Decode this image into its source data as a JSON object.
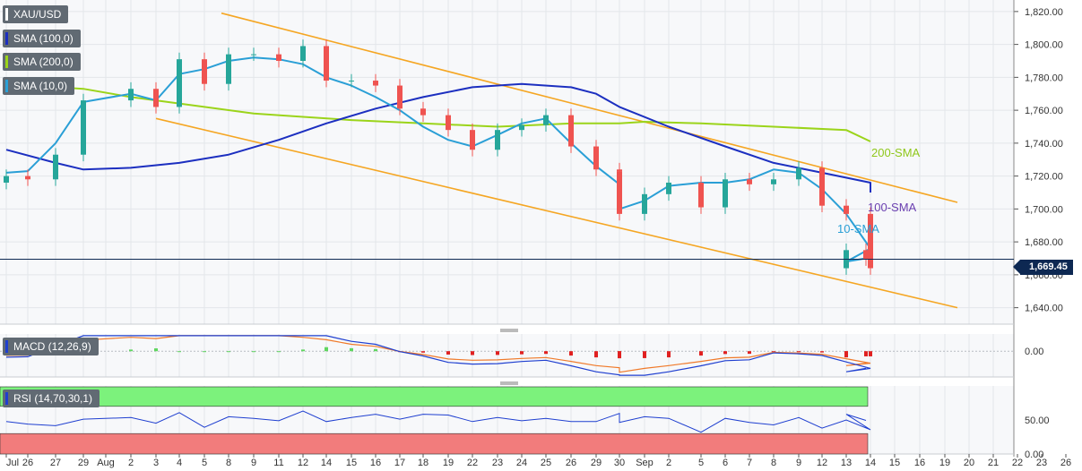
{
  "symbol": "XAU/USD",
  "indicator_tags": {
    "sma100": "SMA (100,0)",
    "sma200": "SMA (200,0)",
    "sma10": "SMA (10,0)",
    "macd": "MACD (12,26,9)",
    "rsi": "RSI (14,70,30,1)"
  },
  "annotations": {
    "sma200": "200-SMA",
    "sma100": "100-SMA",
    "sma10": "10-SMA"
  },
  "current_price": "1,669.45",
  "colors": {
    "bull": "#26a69a",
    "bear": "#ef5350",
    "channel": "#f5a623",
    "sma10": "#2a9fd6",
    "sma100": "#1c2fc0",
    "sma200": "#9bd41a",
    "macd_line": "#1f3fd0",
    "signal_line": "#f07a2a",
    "hist_pos": "#5fd65f",
    "hist_neg": "#e02020",
    "rsi_line": "#1f3fd0",
    "overbought": "#7cf27c",
    "oversold": "#f27c7c",
    "price_line": "#0d2852",
    "grid": "#e3e6ea"
  },
  "chart_data": [
    {
      "type": "candlestick",
      "title": "XAU/USD",
      "y_ticks": [
        1640,
        1660,
        1680,
        1700,
        1720,
        1740,
        1760,
        1780,
        1800,
        1820
      ],
      "y_tick_labels": [
        "1,640.00",
        "1,660.00",
        "1,680.00",
        "1,700.00",
        "1,720.00",
        "1,740.00",
        "1,760.00",
        "1,780.00",
        "1,800.00",
        "1,820.00"
      ],
      "ylim": [
        1630,
        1827
      ],
      "x_ticks": [
        "Jul",
        "26",
        "27",
        "29",
        "Aug",
        "2",
        "3",
        "4",
        "5",
        "8",
        "9",
        "11",
        "12",
        "14",
        "15",
        "16",
        "17",
        "18",
        "19",
        "22",
        "23",
        "24",
        "25",
        "26",
        "29",
        "30",
        "Sep",
        "2",
        "5",
        "6",
        "7",
        "8",
        "9",
        "12",
        "13",
        "14",
        "15",
        "16",
        "19",
        "20",
        "21",
        "22",
        "23",
        "26"
      ],
      "closes_by_date": [
        {
          "date": "Jul 25",
          "close": 1720
        },
        {
          "date": "Jul 26",
          "close": 1718
        },
        {
          "date": "Jul 27",
          "close": 1733
        },
        {
          "date": "Jul 29",
          "close": 1766
        },
        {
          "date": "Aug 2",
          "close": 1773
        },
        {
          "date": "Aug 3",
          "close": 1762
        },
        {
          "date": "Aug 4",
          "close": 1791
        },
        {
          "date": "Aug 5",
          "close": 1776
        },
        {
          "date": "Aug 8",
          "close": 1794
        },
        {
          "date": "Aug 9",
          "close": 1794
        },
        {
          "date": "Aug 11",
          "close": 1790
        },
        {
          "date": "Aug 12",
          "close": 1799
        },
        {
          "date": "Aug 14",
          "close": 1778
        },
        {
          "date": "Aug 15",
          "close": 1778
        },
        {
          "date": "Aug 16",
          "close": 1775
        },
        {
          "date": "Aug 17",
          "close": 1761
        },
        {
          "date": "Aug 18",
          "close": 1757
        },
        {
          "date": "Aug 19",
          "close": 1748
        },
        {
          "date": "Aug 22",
          "close": 1736
        },
        {
          "date": "Aug 23",
          "close": 1748
        },
        {
          "date": "Aug 24",
          "close": 1751
        },
        {
          "date": "Aug 25",
          "close": 1757
        },
        {
          "date": "Aug 26",
          "close": 1738
        },
        {
          "date": "Aug 29",
          "close": 1724
        },
        {
          "date": "Aug 30",
          "close": 1723
        },
        {
          "date": "Sep 1",
          "close": 1697
        },
        {
          "date": "Sep 2",
          "close": 1709
        },
        {
          "date": "Sep 5",
          "close": 1716
        },
        {
          "date": "Sep 6",
          "close": 1701
        },
        {
          "date": "Sep 7",
          "close": 1718
        },
        {
          "date": "Sep 8",
          "close": 1715
        },
        {
          "date": "Sep 9",
          "close": 1718
        },
        {
          "date": "Sep 12",
          "close": 1725
        },
        {
          "date": "Sep 13",
          "close": 1702
        },
        {
          "date": "Sep 14",
          "close": 1697
        },
        {
          "date": "Sep 15",
          "close": 1664
        },
        {
          "date": "Sep 16",
          "close": 1675
        },
        {
          "date": "Sep 18",
          "close": 1669.45
        }
      ],
      "sma10": [
        1722,
        1723,
        1740,
        1765,
        1770,
        1766,
        1782,
        1785,
        1790,
        1792,
        1791,
        1788,
        1780,
        1775,
        1768,
        1760,
        1750,
        1742,
        1738,
        1745,
        1752,
        1755,
        1740,
        1726,
        1715,
        1700,
        1705,
        1714,
        1716,
        1716,
        1718,
        1724,
        1722,
        1712,
        1697,
        1676,
        1668,
        1670
      ],
      "sma100": [
        1736,
        1728,
        1724,
        1725,
        1728,
        1733,
        1742,
        1752,
        1761,
        1768,
        1774,
        1776,
        1774,
        1770,
        1762,
        1750,
        1738,
        1728,
        1722,
        1716,
        1710
      ],
      "sma100_dates": [
        "Jul 25",
        "Jul 27",
        "Jul 29",
        "Aug 2",
        "Aug 4",
        "Aug 8",
        "Aug 11",
        "Aug 14",
        "Aug 16",
        "Aug 18",
        "Aug 22",
        "Aug 24",
        "Aug 26",
        "Aug 29",
        "Sep 1",
        "Sep 5",
        "Sep 7",
        "Sep 9",
        "Sep 13",
        "Sep 15",
        "Sep 19"
      ],
      "sma200": [
        1776,
        1773,
        1768,
        1762,
        1758,
        1756,
        1754,
        1752,
        1750,
        1752,
        1752,
        1753,
        1752,
        1750,
        1748,
        1741
      ],
      "sma200_dates": [
        "Jul 25",
        "Jul 29",
        "Aug 2",
        "Aug 5",
        "Aug 9",
        "Aug 12",
        "Aug 15",
        "Aug 18",
        "Aug 23",
        "Aug 26",
        "Aug 30",
        "Sep 2",
        "Sep 6",
        "Sep 9",
        "Sep 14",
        "Sep 19"
      ],
      "channel": {
        "upper": [
          {
            "date": "Aug 8",
            "value": 1819
          },
          {
            "date": "Sep 22",
            "value": 1704
          }
        ],
        "lower": [
          {
            "date": "Aug 3",
            "value": 1755
          },
          {
            "date": "Sep 22",
            "value": 1640
          }
        ]
      },
      "current_price": 1669.45
    },
    {
      "type": "macd",
      "title": "MACD (12,26,9)",
      "y_tick_labels": [
        "0.00"
      ],
      "ylim": [
        -15,
        10
      ]
    },
    {
      "type": "line",
      "title": "RSI (14,70,30,1)",
      "y_tick_labels": [
        "50.00",
        "0.00"
      ],
      "ylim": [
        0,
        100
      ],
      "levels": [
        30,
        70
      ]
    }
  ]
}
